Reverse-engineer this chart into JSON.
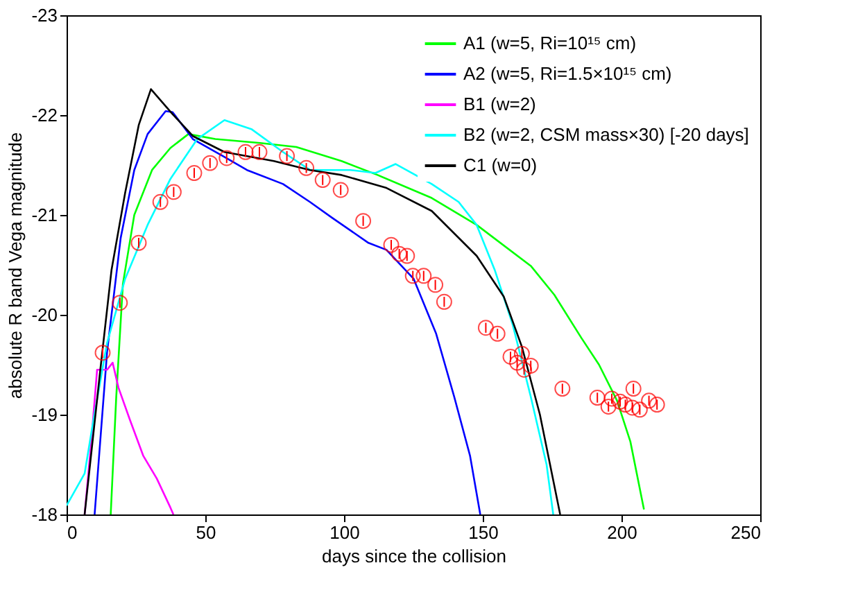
{
  "chart_data": {
    "type": "line",
    "xlabel": "days since the collision",
    "ylabel": "absolute R band Vega magnitude",
    "xlim": [
      0,
      250
    ],
    "xticks": [
      0,
      50,
      100,
      150,
      200,
      250
    ],
    "ylim": [
      -18,
      -23
    ],
    "yticks": [
      -18,
      -19,
      -20,
      -21,
      -22,
      -23
    ],
    "grid": false,
    "legend": "top right",
    "line_style": "solid",
    "series": [
      {
        "name": "A1 (w=5, Ri=10¹⁵ cm)",
        "color": "#00ff00",
        "x": [
          15.9,
          17.9,
          20.3,
          24.4,
          30.8,
          37.4,
          43.9,
          53.6,
          69.8,
          82.8,
          99.1,
          112.1,
          131.6,
          147.8,
          167.3,
          175.8,
          185.5,
          191.9,
          198.4,
          203.2,
          208.1
        ],
        "values": [
          -18,
          -19.18,
          -20.31,
          -21.0,
          -21.45,
          -21.67,
          -21.81,
          -21.76,
          -21.72,
          -21.68,
          -21.54,
          -21.4,
          -21.17,
          -20.9,
          -20.49,
          -20.2,
          -19.77,
          -19.5,
          -19.14,
          -18.73,
          -18.05
        ]
      },
      {
        "name": "A2 (w=5, Ri=1.5×10¹⁵ cm)",
        "color": "#0000ff",
        "x": [
          10.1,
          14.6,
          19.5,
          24.4,
          29.2,
          35.7,
          38.2,
          45.5,
          56.9,
          65.0,
          78.0,
          87.7,
          95.8,
          108.8,
          115.3,
          125.1,
          133.2,
          139.7,
          145.4,
          149.1
        ],
        "values": [
          -18,
          -19.63,
          -20.77,
          -21.45,
          -21.81,
          -22.04,
          -22.03,
          -21.76,
          -21.58,
          -21.45,
          -21.31,
          -21.13,
          -20.97,
          -20.72,
          -20.65,
          -20.36,
          -19.81,
          -19.18,
          -18.59,
          -18
        ]
      },
      {
        "name": "B1 (w=2)",
        "color": "#ff00ff",
        "x": [
          6.5,
          8.9,
          11.0,
          14.6,
          16.6,
          18.7,
          22.8,
          27.6,
          32.5,
          37.4,
          38.5
        ],
        "values": [
          -18,
          -18.73,
          -19.45,
          -19.45,
          -19.52,
          -19.27,
          -18.95,
          -18.59,
          -18.36,
          -18.07,
          -18
        ]
      },
      {
        "name": "B2 (w=2, CSM mass×30) [-20 days]",
        "color": "#00ffff",
        "x": [
          0,
          6.5,
          9.7,
          14.6,
          21.1,
          29.2,
          37.4,
          47.1,
          56.9,
          66.6,
          78.0,
          87.7,
          92.6,
          102.3,
          111.3,
          118.6,
          131.6,
          141.3,
          147.8,
          154.3,
          160.8,
          167.3,
          173.0,
          175.4
        ],
        "values": [
          -18.09,
          -18.41,
          -18.95,
          -19.72,
          -20.36,
          -20.9,
          -21.36,
          -21.76,
          -21.95,
          -21.86,
          -21.63,
          -21.45,
          -21.45,
          -21.45,
          -21.42,
          -21.51,
          -21.31,
          -21.13,
          -20.9,
          -20.45,
          -19.9,
          -19.18,
          -18.5,
          -18
        ]
      },
      {
        "name": "C1 (w=0)",
        "color": "#000000",
        "x": [
          6.5,
          12.2,
          16.2,
          21.1,
          26.0,
          30.4,
          38.2,
          45.5,
          56.9,
          74.7,
          87.7,
          99.1,
          115.3,
          131.6,
          147.8,
          157.6,
          164.1,
          170.6,
          177.9
        ],
        "values": [
          -18,
          -19.46,
          -20.45,
          -21.22,
          -21.9,
          -22.26,
          -22.01,
          -21.79,
          -21.63,
          -21.54,
          -21.45,
          -21.4,
          -21.27,
          -21.04,
          -20.59,
          -20.18,
          -19.68,
          -19.0,
          -18
        ]
      },
      {
        "type": "scatter",
        "marker": "circle",
        "color": "#ff0000",
        "x": [
          13.0,
          19.2,
          26.0,
          33.8,
          38.6,
          46.0,
          51.7,
          57.7,
          64.5,
          69.5,
          79.4,
          86.4,
          92.3,
          98.8,
          106.9,
          117.0,
          119.9,
          122.7,
          124.8,
          128.7,
          132.9,
          136.1,
          151.1,
          155.3,
          160.0,
          164.1,
          162.4,
          164.9,
          167.3,
          178.7,
          191.3,
          195.3,
          196.5,
          199.5,
          201.4,
          204.3,
          203.9,
          206.6,
          209.9,
          212.8
        ],
        "values": [
          -19.62,
          -20.12,
          -20.72,
          -21.13,
          -21.23,
          -21.42,
          -21.52,
          -21.57,
          -21.63,
          -21.63,
          -21.59,
          -21.47,
          -21.35,
          -21.25,
          -20.94,
          -20.7,
          -20.61,
          -20.59,
          -20.39,
          -20.39,
          -20.3,
          -20.13,
          -19.87,
          -19.81,
          -19.58,
          -19.61,
          -19.52,
          -19.45,
          -19.49,
          -19.26,
          -19.17,
          -19.08,
          -19.16,
          -19.13,
          -19.1,
          -19.26,
          -19.07,
          -19.05,
          -19.14,
          -19.1
        ],
        "errors": [
          0.05,
          0.05,
          0.05,
          0.05,
          0.05,
          0.05,
          0.05,
          0.05,
          0.05,
          0.05,
          0.05,
          0.05,
          0.05,
          0.05,
          0.05,
          0.05,
          0.05,
          0.05,
          0.05,
          0.05,
          0.05,
          0.05,
          0.05,
          0.05,
          0.05,
          0.05,
          0.05,
          0.05,
          0.05,
          0.05,
          0.05,
          0.05,
          0.05,
          0.05,
          0.05,
          0.05,
          0.05,
          0.05,
          0.05,
          0.05
        ]
      }
    ]
  }
}
